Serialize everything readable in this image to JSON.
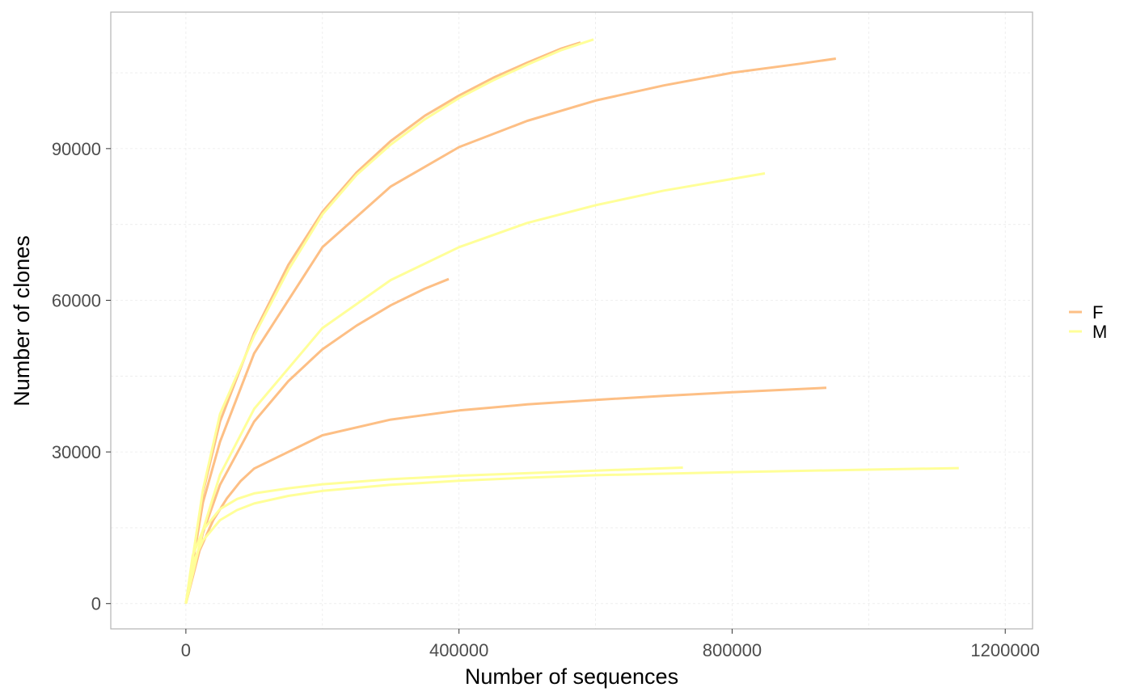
{
  "chart_data": {
    "type": "line",
    "title": "",
    "xlabel": "Number of sequences",
    "ylabel": "Number of clones",
    "xlim": [
      -110000,
      1240000
    ],
    "ylim": [
      -5000,
      117000
    ],
    "x_ticks": [
      0,
      400000,
      800000,
      1200000
    ],
    "x_tick_labels": [
      "0",
      "400000",
      "800000",
      "1200000"
    ],
    "y_ticks": [
      0,
      30000,
      60000,
      90000
    ],
    "y_tick_labels": [
      "0",
      "30000",
      "60000",
      "90000"
    ],
    "grid": true,
    "legend_position": "right",
    "legend": [
      {
        "label": "F",
        "color": "#fdbf85"
      },
      {
        "label": "M",
        "color": "#ffff99"
      }
    ],
    "series": [
      {
        "group": "F",
        "color": "#fdbf85",
        "x": [
          0,
          25000,
          50000,
          100000,
          150000,
          200000,
          250000,
          300000,
          350000,
          400000,
          450000,
          500000,
          550000,
          578000
        ],
        "y": [
          0,
          22000,
          36000,
          53500,
          67000,
          77500,
          85300,
          91500,
          96500,
          100500,
          104000,
          107000,
          109800,
          111000
        ]
      },
      {
        "group": "F",
        "color": "#fdbf85",
        "x": [
          0,
          25000,
          50000,
          100000,
          200000,
          300000,
          400000,
          500000,
          600000,
          700000,
          800000,
          900000,
          952000
        ],
        "y": [
          0,
          20000,
          32000,
          49500,
          70500,
          82500,
          90300,
          95500,
          99500,
          102500,
          105000,
          106800,
          107800
        ]
      },
      {
        "group": "F",
        "color": "#fdbf85",
        "x": [
          0,
          25000,
          50000,
          100000,
          150000,
          200000,
          250000,
          300000,
          350000,
          385000
        ],
        "y": [
          0,
          14000,
          23500,
          36000,
          44000,
          50300,
          55000,
          59000,
          62300,
          64200
        ]
      },
      {
        "group": "F",
        "color": "#fdbf85",
        "x": [
          0,
          20000,
          40000,
          60000,
          80000,
          100000,
          200000,
          300000,
          400000,
          500000,
          600000,
          700000,
          800000,
          938000
        ],
        "y": [
          0,
          10500,
          16500,
          20800,
          24200,
          26700,
          33300,
          36400,
          38200,
          39400,
          40300,
          41100,
          41800,
          42700
        ]
      },
      {
        "group": "M",
        "color": "#ffff99",
        "x": [
          0,
          25000,
          50000,
          100000,
          150000,
          200000,
          250000,
          300000,
          350000,
          400000,
          450000,
          500000,
          550000,
          597000
        ],
        "y": [
          0,
          22500,
          37500,
          53000,
          66000,
          77000,
          84800,
          90800,
          95800,
          100000,
          103500,
          106600,
          109500,
          111600
        ]
      },
      {
        "group": "M",
        "color": "#ffff99",
        "x": [
          0,
          25000,
          50000,
          100000,
          200000,
          300000,
          400000,
          500000,
          600000,
          700000,
          800000,
          848000
        ],
        "y": [
          0,
          14500,
          25500,
          38500,
          54500,
          64000,
          70500,
          75300,
          78800,
          81700,
          84000,
          85100
        ]
      },
      {
        "group": "M",
        "color": "#ffff99",
        "x": [
          0,
          10000,
          25000,
          50000,
          75000,
          100000,
          150000,
          200000,
          300000,
          400000,
          500000,
          600000,
          728000
        ],
        "y": [
          0,
          9500,
          14500,
          18700,
          20700,
          21800,
          22800,
          23600,
          24600,
          25300,
          25800,
          26300,
          26900
        ]
      },
      {
        "group": "M",
        "color": "#ffff99",
        "x": [
          0,
          10000,
          25000,
          50000,
          75000,
          100000,
          150000,
          200000,
          300000,
          400000,
          500000,
          600000,
          800000,
          1000000,
          1132000
        ],
        "y": [
          0,
          8000,
          12500,
          16500,
          18500,
          19800,
          21300,
          22300,
          23500,
          24300,
          24900,
          25400,
          26000,
          26500,
          26800
        ]
      }
    ]
  }
}
